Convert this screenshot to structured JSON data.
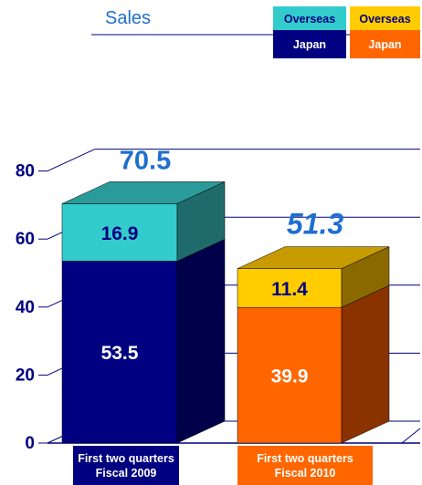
{
  "chart_data": {
    "type": "bar",
    "stacked": true,
    "three_d": true,
    "title": "Sales",
    "ylim": [
      0,
      80
    ],
    "yticks": [
      0,
      20,
      40,
      60,
      80
    ],
    "categories": [
      "First two quarters Fiscal 2009",
      "First two quarters Fiscal 2010"
    ],
    "category_lines": [
      [
        "First two quarters",
        "Fiscal 2009"
      ],
      [
        "First two quarters",
        "Fiscal 2010"
      ]
    ],
    "series": [
      {
        "name": "Japan",
        "values": [
          53.5,
          39.9
        ]
      },
      {
        "name": "Overseas",
        "values": [
          16.9,
          11.4
        ]
      }
    ],
    "totals": [
      70.5,
      51.3
    ],
    "legend": [
      {
        "group": 0,
        "top_label": "Overseas",
        "bottom_label": "Japan"
      },
      {
        "group": 1,
        "top_label": "Overseas",
        "bottom_label": "Japan"
      }
    ],
    "legend_position": "top-right",
    "grid": true,
    "colors": {
      "bar_2009": {
        "japan": "#000080",
        "japan_side": "#00004a",
        "overseas": "#33cccc",
        "overseas_side": "#1f6b6b",
        "overseas_top": "#2a9a9a",
        "label_bg": "#000080"
      },
      "bar_2010": {
        "japan": "#ff6600",
        "japan_side": "#8a3300",
        "overseas": "#ffcc00",
        "overseas_side": "#8a6a00",
        "overseas_top": "#c79a00",
        "label_bg": "#ff6600"
      },
      "axis_text": "#000080",
      "title": "#1f6fd0",
      "total": "#1f6fd0",
      "value_dark": "#000080",
      "value_light": "#ffffff"
    }
  }
}
